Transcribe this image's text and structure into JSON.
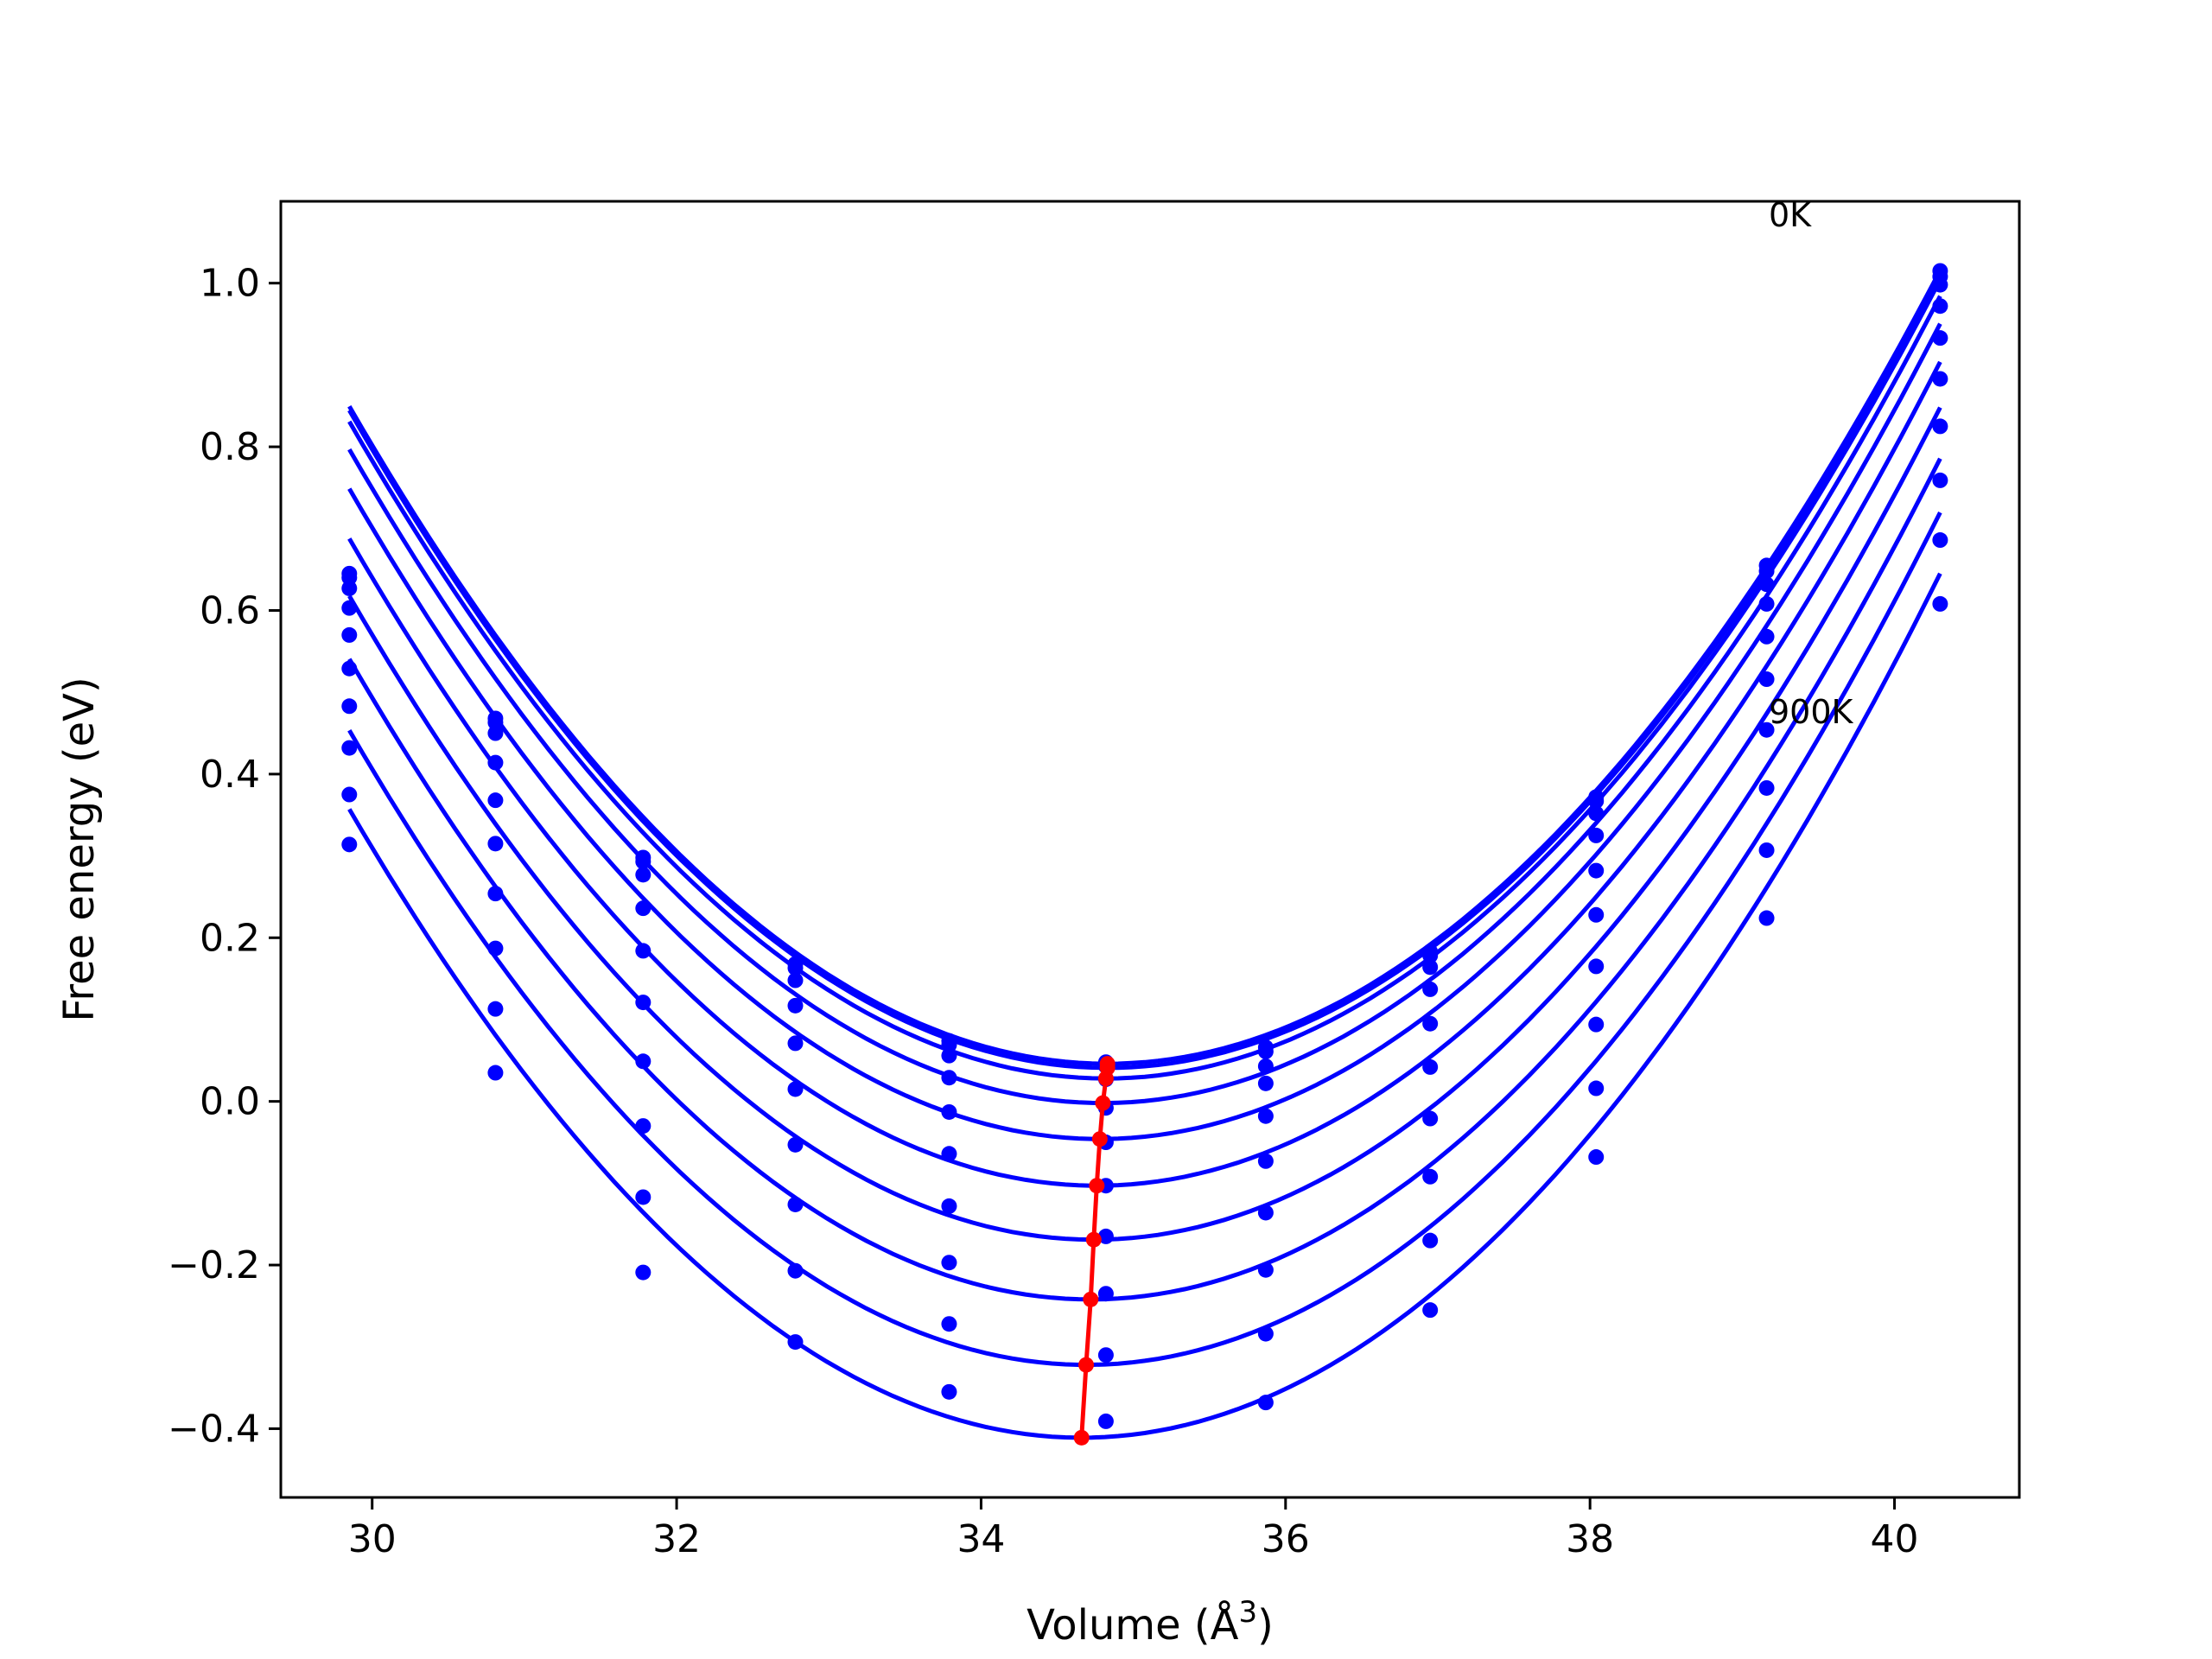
{
  "chart_data": {
    "type": "scatter",
    "xlabel": "Volume (Å",
    "xlabel_sup": "3",
    "xlabel_close": ")",
    "ylabel": "Free energy (eV)",
    "xlim": [
      29.4,
      40.82
    ],
    "ylim": [
      -0.484,
      1.1
    ],
    "xticks": [
      30,
      32,
      34,
      36,
      38,
      40
    ],
    "yticks": [
      -0.4,
      -0.2,
      0.0,
      0.2,
      0.4,
      0.6,
      0.8,
      1.0
    ],
    "ytick_labels": [
      "−0.4",
      "−0.2",
      "0.0",
      "0.2",
      "0.4",
      "0.6",
      "0.8",
      "1.0"
    ],
    "xtick_labels": [
      "30",
      "32",
      "34",
      "36",
      "38",
      "40"
    ],
    "annotations": [
      {
        "text": "0K",
        "x": 39.12,
        "y": 1.06
      },
      {
        "text": "900K",
        "x": 39.12,
        "y": 0.45
      }
    ],
    "colors": {
      "curves": "#0000ff",
      "minima": "#ff0000",
      "axes": "#000000"
    },
    "volumes": [
      29.85,
      30.81,
      31.78,
      32.78,
      33.79,
      34.82,
      35.87,
      36.95,
      38.04,
      39.16,
      40.3
    ],
    "series": [
      {
        "y": [
          0.645,
          0.468,
          0.298,
          0.168,
          0.074,
          0.048,
          0.066,
          0.183,
          0.372,
          0.655,
          1.015
        ],
        "fit": {
          "a": 0.0324,
          "c": 0.046,
          "vmin": 34.83
        }
      },
      {
        "y": [
          0.64,
          0.463,
          0.293,
          0.163,
          0.069,
          0.043,
          0.061,
          0.178,
          0.367,
          0.648,
          1.008
        ],
        "fit": {
          "a": 0.0324,
          "c": 0.041,
          "vmin": 34.83
        }
      },
      {
        "y": [
          0.627,
          0.45,
          0.277,
          0.148,
          0.056,
          0.027,
          0.043,
          0.164,
          0.352,
          0.632,
          0.998
        ],
        "fit": {
          "a": 0.0325,
          "c": 0.028,
          "vmin": 34.82
        }
      },
      {
        "y": [
          0.603,
          0.414,
          0.236,
          0.117,
          0.029,
          -0.008,
          0.022,
          0.137,
          0.325,
          0.608,
          0.972
        ],
        "fit": {
          "a": 0.0326,
          "c": -0.002,
          "vmin": 34.8
        }
      },
      {
        "y": [
          0.57,
          0.368,
          0.184,
          0.071,
          -0.013,
          -0.05,
          -0.018,
          0.095,
          0.282,
          0.568,
          0.933
        ],
        "fit": {
          "a": 0.0327,
          "c": -0.046,
          "vmin": 34.78
        }
      },
      {
        "y": [
          0.529,
          0.315,
          0.121,
          0.015,
          -0.064,
          -0.103,
          -0.073,
          0.042,
          0.228,
          0.516,
          0.883
        ],
        "fit": {
          "a": 0.0328,
          "c": -0.103,
          "vmin": 34.76
        }
      },
      {
        "y": [
          0.483,
          0.254,
          0.049,
          -0.053,
          -0.128,
          -0.165,
          -0.136,
          -0.021,
          0.165,
          0.454,
          0.825
        ],
        "fit": {
          "a": 0.0329,
          "c": -0.169,
          "vmin": 34.74
        }
      },
      {
        "y": [
          0.432,
          0.187,
          -0.03,
          -0.126,
          -0.197,
          -0.235,
          -0.206,
          -0.092,
          0.094,
          0.383,
          0.759
        ],
        "fit": {
          "a": 0.033,
          "c": -0.242,
          "vmin": 34.72
        }
      },
      {
        "y": [
          0.375,
          0.113,
          -0.117,
          -0.207,
          -0.272,
          -0.31,
          -0.284,
          -0.17,
          0.016,
          0.307,
          0.686
        ],
        "fit": {
          "a": 0.0331,
          "c": -0.322,
          "vmin": 34.69
        }
      },
      {
        "y": [
          0.314,
          0.035,
          -0.209,
          -0.294,
          -0.355,
          -0.391,
          -0.368,
          -0.255,
          -0.068,
          0.224,
          0.608
        ],
        "fit": {
          "a": 0.0332,
          "c": -0.411,
          "vmin": 34.66
        }
      }
    ],
    "minima_line": {
      "x": [
        34.83,
        34.83,
        34.82,
        34.8,
        34.78,
        34.76,
        34.74,
        34.72,
        34.69,
        34.66
      ],
      "y": [
        0.046,
        0.041,
        0.028,
        -0.002,
        -0.046,
        -0.103,
        -0.169,
        -0.242,
        -0.322,
        -0.411
      ]
    }
  }
}
